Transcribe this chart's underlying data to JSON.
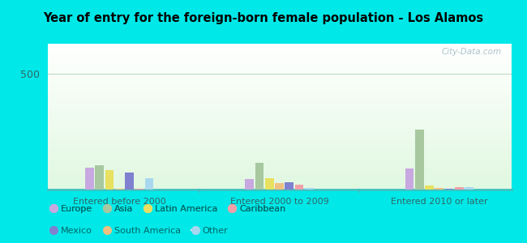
{
  "title": "Year of entry for the foreign-born female population - Los Alamos",
  "groups": [
    "Entered before 2000",
    "Entered 2000 to 2009",
    "Entered 2010 or later"
  ],
  "categories": [
    "Europe",
    "Asia",
    "Latin America",
    "South America",
    "Mexico",
    "Caribbean",
    "Other"
  ],
  "colors": {
    "Europe": "#c8a8e0",
    "Asia": "#a8c8a0",
    "Latin America": "#e8e060",
    "South America": "#f0c080",
    "Mexico": "#8080d0",
    "Caribbean": "#f0a0a8",
    "Other": "#a8d8f0"
  },
  "bar_order": [
    "Europe",
    "Asia",
    "Latin America",
    "South America",
    "Mexico",
    "Caribbean",
    "Other"
  ],
  "values": {
    "Entered before 2000": {
      "Europe": 95,
      "Asia": 105,
      "Latin America": 85,
      "South America": 5,
      "Mexico": 72,
      "Caribbean": 3,
      "Other": 50
    },
    "Entered 2000 to 2009": {
      "Europe": 45,
      "Asia": 115,
      "Latin America": 50,
      "South America": 28,
      "Mexico": 32,
      "Caribbean": 22,
      "Other": 8
    },
    "Entered 2010 or later": {
      "Europe": 90,
      "Asia": 260,
      "Latin America": 18,
      "South America": 8,
      "Mexico": 3,
      "Caribbean": 12,
      "Other": 12
    }
  },
  "ylim": [
    0,
    630
  ],
  "ytick_val": 500,
  "background_outer": "#00e8e8",
  "watermark": "City-Data.com",
  "legend_row1": [
    "Europe",
    "Asia",
    "Latin America",
    "Caribbean"
  ],
  "legend_row2": [
    "Mexico",
    "South America",
    "Other"
  ]
}
